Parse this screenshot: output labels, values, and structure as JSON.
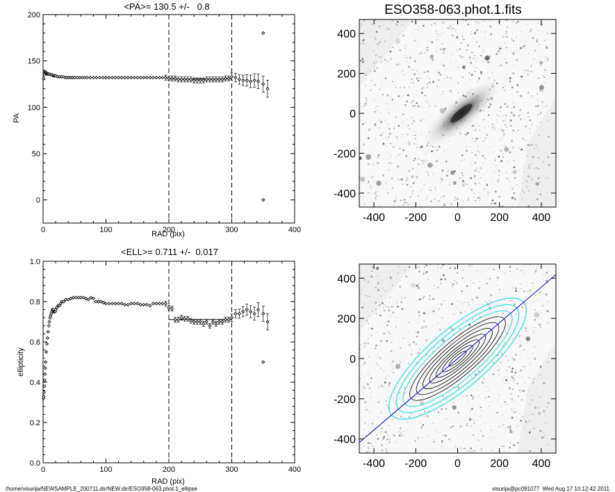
{
  "footer": {
    "path": "/home/visurija/NEWSAMPLE_200711.dir/NEW.dir/ESO358-063.phot.1_ellipse",
    "user_time": "visurija@pc091077  Wed Aug 17 10:12:42 2011"
  },
  "chart_data": [
    {
      "type": "scatter",
      "title": "<PA>= 130.5 +/-   0.8",
      "xlabel": "RAD (pix)",
      "ylabel": "PA",
      "xlim": [
        0,
        400
      ],
      "ylim": [
        -25,
        200
      ],
      "xticks": [
        0,
        100,
        200,
        300,
        400
      ],
      "yticks": [
        0,
        50,
        100,
        150,
        200
      ],
      "vlines": [
        200,
        300
      ],
      "mean_line": 130.5,
      "x": [
        1,
        2,
        3,
        4,
        5,
        6,
        7,
        8,
        10,
        12,
        14,
        16,
        18,
        20,
        23,
        26,
        29,
        32,
        35,
        38,
        41,
        44,
        47,
        50,
        54,
        58,
        62,
        66,
        70,
        75,
        80,
        85,
        90,
        95,
        100,
        105,
        110,
        115,
        120,
        125,
        130,
        135,
        140,
        145,
        150,
        155,
        160,
        165,
        170,
        175,
        180,
        185,
        190,
        195,
        200,
        205,
        210,
        215,
        220,
        225,
        230,
        235,
        240,
        245,
        250,
        255,
        260,
        265,
        270,
        275,
        280,
        285,
        290,
        295,
        300,
        306,
        312,
        318,
        324,
        330,
        336,
        342,
        350,
        357
      ],
      "y": [
        131,
        135,
        138,
        138,
        137,
        136,
        136,
        136,
        136,
        135,
        135,
        134,
        134,
        134,
        133,
        133,
        133,
        133,
        132,
        132,
        132,
        132,
        132,
        132,
        132,
        132,
        132,
        132,
        132,
        132,
        132,
        132,
        132,
        132,
        132,
        132,
        132,
        132,
        132,
        132,
        132,
        132,
        132,
        132,
        132,
        132,
        132,
        132,
        132,
        132,
        132,
        132,
        132,
        132,
        131,
        131,
        131,
        130,
        130,
        130,
        130,
        130,
        129,
        129,
        129,
        129,
        130,
        130,
        130,
        130,
        130,
        130,
        131,
        131,
        133,
        132,
        130,
        129,
        129,
        128,
        129,
        128,
        125,
        120
      ],
      "outliers": [
        {
          "x": 350,
          "y": 180
        },
        {
          "x": 350,
          "y": 0
        }
      ]
    },
    {
      "type": "scatter",
      "title": "<ELL>= 0.711 +/-  0.017",
      "xlabel": "RAD (pix)",
      "ylabel": "ellipticity",
      "xlim": [
        0,
        400
      ],
      "ylim": [
        0,
        1
      ],
      "xticks": [
        0,
        100,
        200,
        300,
        400
      ],
      "yticks": [
        0.0,
        0.2,
        0.4,
        0.6,
        0.8,
        1.0
      ],
      "vlines": [
        200,
        300
      ],
      "mean_line": 0.711,
      "x": [
        0.5,
        1,
        1.5,
        2,
        2.5,
        3,
        3.5,
        4,
        5,
        6,
        7,
        8,
        9,
        10,
        11,
        12,
        13,
        14,
        15,
        16,
        17,
        18,
        19,
        20,
        22,
        24,
        26,
        28,
        30,
        33,
        36,
        40,
        44,
        48,
        52,
        56,
        60,
        64,
        68,
        72,
        76,
        80,
        84,
        88,
        92,
        96,
        100,
        105,
        110,
        115,
        120,
        125,
        130,
        135,
        140,
        145,
        150,
        155,
        160,
        165,
        170,
        175,
        180,
        185,
        190,
        195,
        200,
        205,
        210,
        215,
        220,
        225,
        230,
        235,
        240,
        245,
        250,
        255,
        260,
        265,
        270,
        275,
        280,
        285,
        290,
        295,
        300,
        306,
        312,
        318,
        324,
        330,
        336,
        342,
        350,
        357
      ],
      "y": [
        0.32,
        0.33,
        0.35,
        0.38,
        0.41,
        0.44,
        0.47,
        0.5,
        0.55,
        0.59,
        0.62,
        0.65,
        0.68,
        0.7,
        0.72,
        0.73,
        0.74,
        0.75,
        0.76,
        0.76,
        0.75,
        0.75,
        0.75,
        0.76,
        0.77,
        0.78,
        0.78,
        0.79,
        0.8,
        0.8,
        0.81,
        0.81,
        0.815,
        0.82,
        0.82,
        0.82,
        0.82,
        0.82,
        0.815,
        0.81,
        0.82,
        0.815,
        0.8,
        0.8,
        0.8,
        0.795,
        0.79,
        0.79,
        0.79,
        0.79,
        0.79,
        0.79,
        0.785,
        0.785,
        0.79,
        0.79,
        0.79,
        0.785,
        0.785,
        0.785,
        0.78,
        0.79,
        0.79,
        0.79,
        0.79,
        0.79,
        0.77,
        0.765,
        0.71,
        0.71,
        0.72,
        0.715,
        0.715,
        0.705,
        0.7,
        0.7,
        0.7,
        0.69,
        0.7,
        0.68,
        0.7,
        0.69,
        0.7,
        0.7,
        0.71,
        0.71,
        0.72,
        0.74,
        0.74,
        0.75,
        0.76,
        0.75,
        0.74,
        0.76,
        0.74,
        0.7
      ],
      "outliers": [
        {
          "x": 350,
          "y": 0.5
        }
      ]
    },
    {
      "type": "heatmap",
      "title": "ESO358-063.phot.1.fits",
      "xlim": [
        -470,
        470
      ],
      "ylim": [
        -470,
        470
      ],
      "ticks": [
        -400,
        -200,
        0,
        200,
        400
      ]
    },
    {
      "type": "heatmap",
      "title": "",
      "xlim": [
        -470,
        470
      ],
      "ylim": [
        -470,
        470
      ],
      "ticks": [
        -400,
        -200,
        0,
        200,
        400
      ],
      "major_axis_pa": 130.5,
      "contour_colors": [
        "#40e0e0",
        "#000000",
        "#0000cc"
      ]
    }
  ]
}
